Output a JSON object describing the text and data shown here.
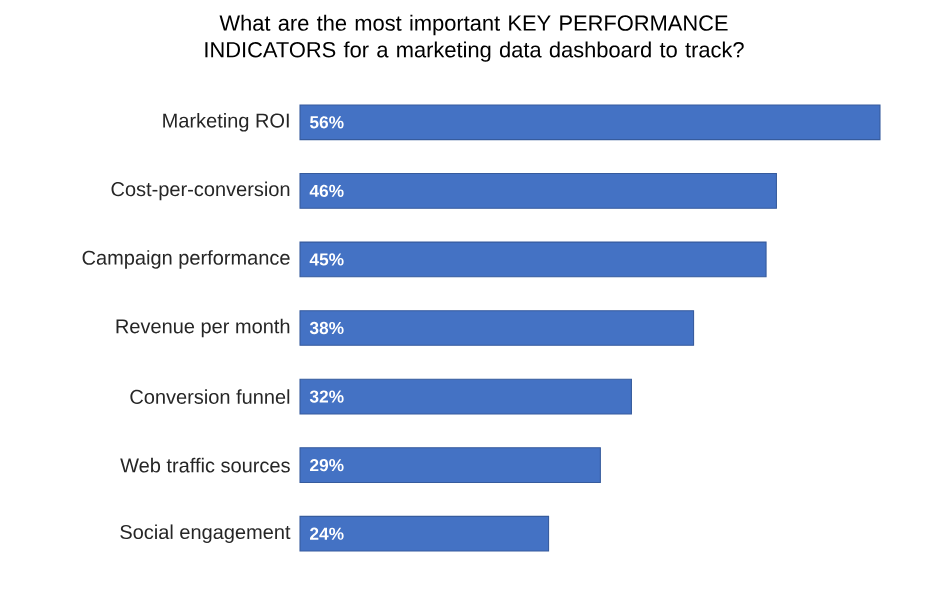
{
  "chart_data": {
    "type": "bar",
    "orientation": "horizontal",
    "title": "What are the most important KEY PERFORMANCE INDICATORS for a marketing data dashboard to track?",
    "categories": [
      "Marketing ROI",
      "Cost-per-conversion",
      "Campaign performance",
      "Revenue per month",
      "Conversion funnel",
      "Web traffic sources",
      "Social engagement"
    ],
    "values": [
      56,
      46,
      45,
      38,
      32,
      29,
      24
    ],
    "value_labels": [
      "56%",
      "46%",
      "45%",
      "38%",
      "32%",
      "29%",
      "24%"
    ],
    "color": "#4472c4"
  }
}
